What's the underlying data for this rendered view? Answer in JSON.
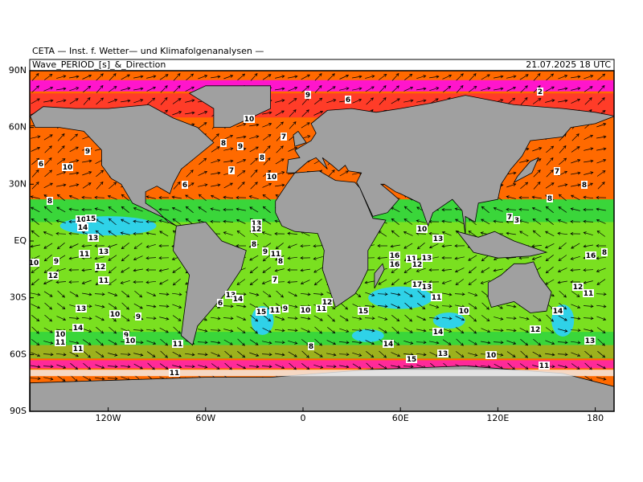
{
  "header": {
    "source": "CETA — Inst. f. Wetter— und Klimafolgenanalysen —",
    "title": "Wave_PERIOD_[s]_&_Direction",
    "timestamp": "21.07.2025 18 UTC"
  },
  "lat_labels": [
    "90N",
    "60N",
    "30N",
    "EQ",
    "30S",
    "60S",
    "90S"
  ],
  "lon_labels": [
    "120W",
    "60W",
    "0",
    "60E",
    "120E",
    "180"
  ],
  "period_labels": [
    "10",
    "9",
    "6",
    "8",
    "10",
    "15",
    "14",
    "13",
    "11",
    "10",
    "9",
    "12",
    "11",
    "13",
    "12",
    "13",
    "10",
    "9",
    "14",
    "10",
    "11",
    "11",
    "9",
    "10",
    "11",
    "11",
    "10",
    "8",
    "9",
    "7",
    "8",
    "7",
    "10",
    "6",
    "13",
    "12",
    "8",
    "9",
    "11",
    "8",
    "7",
    "13",
    "14",
    "6",
    "15",
    "11",
    "9",
    "10",
    "11",
    "12",
    "8",
    "10",
    "13",
    "11",
    "13",
    "12",
    "16",
    "16",
    "17",
    "13",
    "11",
    "10",
    "14",
    "14",
    "15",
    "13",
    "10",
    "12",
    "14",
    "12",
    "11",
    "13",
    "11",
    "16",
    "8",
    "3",
    "7",
    "8",
    "7",
    "8",
    "2",
    "9",
    "6",
    "15"
  ]
}
